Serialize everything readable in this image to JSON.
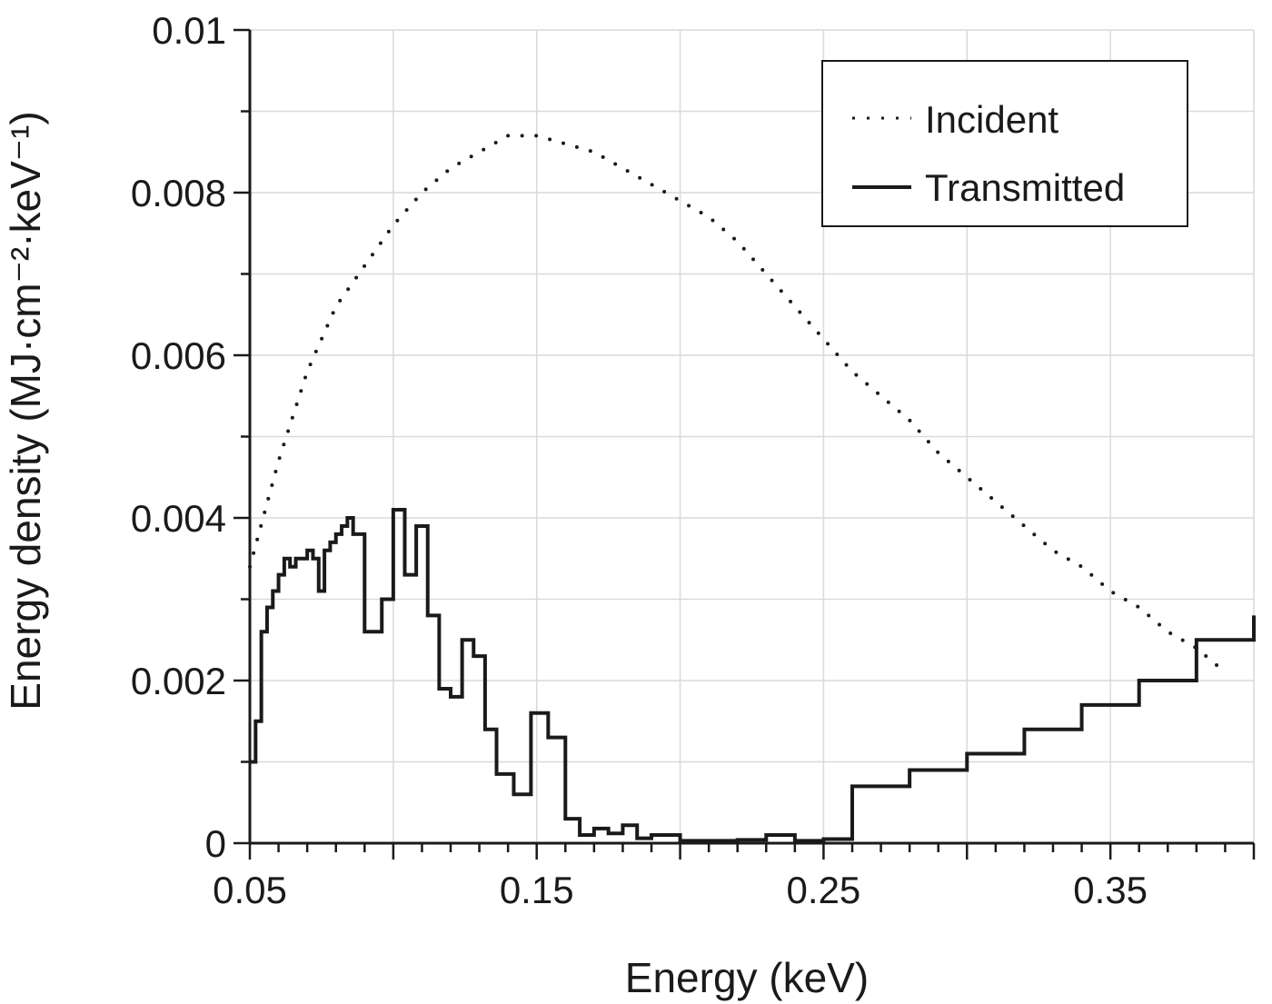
{
  "chart_data": {
    "type": "line",
    "xlabel": "Energy (keV)",
    "ylabel": "Energy density (MJ·cm⁻²·keV⁻¹)",
    "xlim": [
      0.05,
      0.4
    ],
    "ylim": [
      0,
      0.01
    ],
    "x_major_ticks": [
      0.05,
      0.15,
      0.25,
      0.35
    ],
    "x_tick_labels": [
      "0.05",
      "0.15",
      "0.25",
      "0.35"
    ],
    "y_major_ticks": [
      0,
      0.002,
      0.004,
      0.006,
      0.008,
      0.01
    ],
    "y_tick_labels": [
      "0",
      "0.002",
      "0.004",
      "0.006",
      "0.008",
      "0.01"
    ],
    "grid": true,
    "legend_position": "top-right",
    "colors": {
      "axis": "#1a1a1a",
      "grid": "#d9d9d9",
      "series": "#1a1a1a"
    },
    "series": [
      {
        "name": "Incident",
        "style": "dotted",
        "x": [
          0.05,
          0.06,
          0.07,
          0.08,
          0.09,
          0.1,
          0.11,
          0.12,
          0.13,
          0.14,
          0.15,
          0.16,
          0.17,
          0.18,
          0.19,
          0.2,
          0.21,
          0.22,
          0.23,
          0.24,
          0.25,
          0.26,
          0.27,
          0.28,
          0.29,
          0.3,
          0.31,
          0.32,
          0.33,
          0.34,
          0.35,
          0.36,
          0.37,
          0.38,
          0.39
        ],
        "y": [
          0.0034,
          0.0047,
          0.0058,
          0.0066,
          0.0071,
          0.0076,
          0.008,
          0.0083,
          0.0085,
          0.0087,
          0.0087,
          0.0086,
          0.0085,
          0.0083,
          0.0081,
          0.0079,
          0.0077,
          0.0074,
          0.007,
          0.0066,
          0.0062,
          0.0058,
          0.0055,
          0.0052,
          0.0048,
          0.0045,
          0.0042,
          0.0039,
          0.0036,
          0.0034,
          0.0031,
          0.0029,
          0.0026,
          0.0024,
          0.0021
        ]
      },
      {
        "name": "Transmitted",
        "style": "step",
        "x": [
          0.05,
          0.052,
          0.054,
          0.056,
          0.058,
          0.06,
          0.062,
          0.064,
          0.066,
          0.068,
          0.07,
          0.072,
          0.074,
          0.076,
          0.078,
          0.08,
          0.082,
          0.084,
          0.086,
          0.088,
          0.09,
          0.092,
          0.096,
          0.1,
          0.104,
          0.108,
          0.112,
          0.116,
          0.12,
          0.124,
          0.128,
          0.132,
          0.136,
          0.142,
          0.148,
          0.154,
          0.16,
          0.165,
          0.17,
          0.175,
          0.18,
          0.185,
          0.19,
          0.2,
          0.21,
          0.22,
          0.23,
          0.24,
          0.25,
          0.26,
          0.28,
          0.3,
          0.32,
          0.34,
          0.36,
          0.38,
          0.4
        ],
        "y": [
          0.001,
          0.0015,
          0.0026,
          0.0029,
          0.0031,
          0.0033,
          0.0035,
          0.0034,
          0.0035,
          0.0035,
          0.0036,
          0.0035,
          0.0031,
          0.0036,
          0.0037,
          0.0038,
          0.0039,
          0.004,
          0.0038,
          0.0038,
          0.0026,
          0.0026,
          0.003,
          0.0041,
          0.0033,
          0.0039,
          0.0028,
          0.0019,
          0.0018,
          0.0025,
          0.0023,
          0.0014,
          0.00085,
          0.0006,
          0.0016,
          0.0013,
          0.0003,
          0.0001,
          0.00018,
          0.00012,
          0.00022,
          6e-05,
          0.0001,
          3e-05,
          3e-05,
          4e-05,
          0.0001,
          3e-05,
          5e-05,
          0.0007,
          0.0009,
          0.0011,
          0.0014,
          0.0017,
          0.002,
          0.0025,
          0.0028
        ]
      }
    ]
  }
}
